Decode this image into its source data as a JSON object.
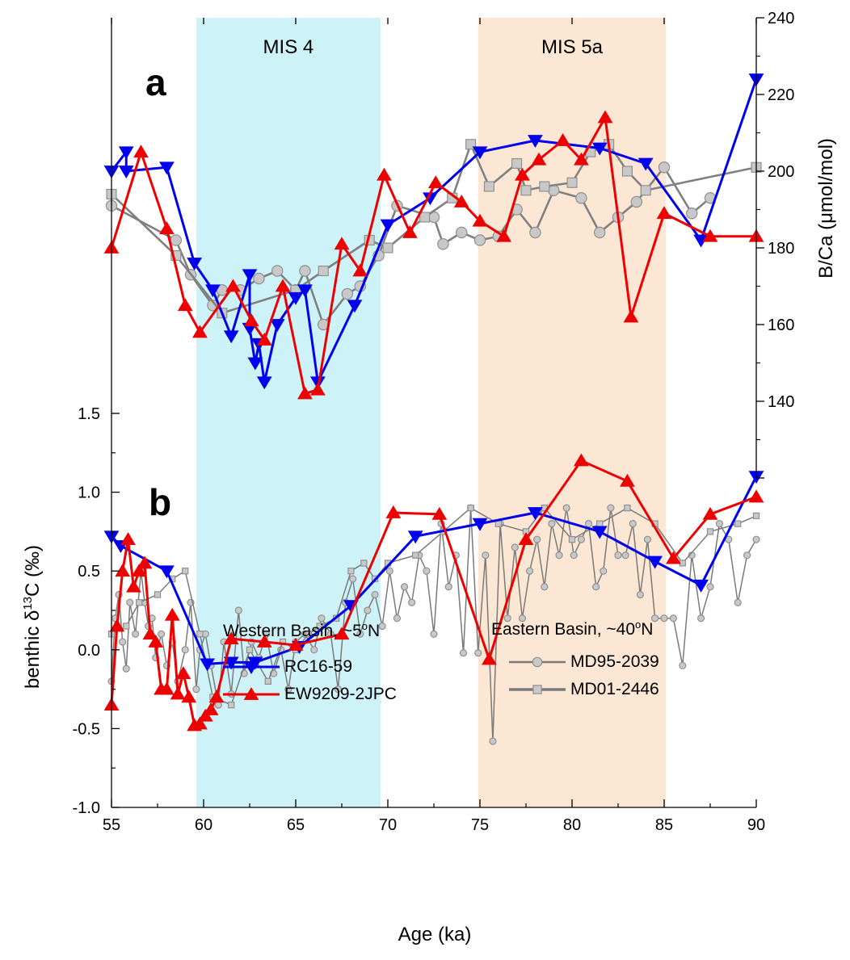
{
  "chart_data": {
    "type": "line",
    "xlabel": "Age (ka)",
    "xlim": [
      55,
      90
    ],
    "xticks": [
      "55",
      "60",
      "65",
      "70",
      "75",
      "80",
      "85",
      "90"
    ],
    "bands": [
      {
        "label": "MIS 4",
        "x0": 59.6,
        "x1": 69.6,
        "color": "#cdf3f8"
      },
      {
        "label": "MIS 5a",
        "x0": 74.9,
        "x1": 85.1,
        "color": "#fce6d4"
      }
    ],
    "legend": {
      "western_title": "Western Basin, ~5",
      "western_unit": "N",
      "eastern_title": "Eastern Basin, ~40",
      "eastern_unit": "N",
      "degree_symbol": "o"
    },
    "panels": [
      {
        "label": "a",
        "ylabel": "B/Ca (μmol/mol)",
        "y_side": "right",
        "ylim": [
          140,
          240
        ],
        "yticks": [
          "140",
          "160",
          "180",
          "200",
          "220",
          "240"
        ],
        "series": [
          {
            "name": "MD95-2039",
            "color": "#808080",
            "marker": "circle",
            "thin": false,
            "x": [
              55,
              58.5,
              59.3,
              60.5,
              61,
              62,
              63,
              64,
              65,
              65.5,
              66.5,
              67.8,
              68.5,
              69.5,
              70.5,
              72.5,
              73,
              74,
              75,
              76,
              77,
              78,
              79,
              80.5,
              81.5,
              82.5,
              83.5,
              85,
              86.5,
              87.5
            ],
            "y": [
              191,
              182,
              173,
              165,
              169,
              169,
              172,
              174,
              169,
              174,
              160,
              168,
              170,
              178,
              191,
              188,
              181,
              184,
              182,
              183,
              190,
              184,
              195,
              193,
              184,
              188,
              192,
              201,
              189,
              193
            ]
          },
          {
            "name": "MD01-2446",
            "color": "#808080",
            "marker": "square",
            "thin": false,
            "x": [
              55,
              58.5,
              61,
              65,
              66.5,
              69,
              70,
              72,
              73.5,
              74.5,
              75.5,
              77,
              77.5,
              78.5,
              80,
              81,
              82,
              83,
              84,
              90
            ],
            "y": [
              194,
              178,
              163,
              169,
              174,
              182,
              180,
              188,
              193,
              207,
              196,
              202,
              195,
              196,
              197,
              205,
              207,
              200,
              195,
              201
            ]
          },
          {
            "name": "RC16-59",
            "color": "#0000ee",
            "marker": "tri-down",
            "thin": false,
            "x": [
              55,
              55.8,
              55.8,
              58,
              59.5,
              60.5,
              61.5,
              62.5,
              62.5,
              62.8,
              63,
              63.3,
              64,
              65,
              65.5,
              66.2,
              68.2,
              70,
              72.3,
              75,
              78,
              81.5,
              84,
              87,
              90
            ],
            "y": [
              200,
              205,
              200,
              201,
              176,
              169,
              157,
              173,
              159,
              150,
              155,
              145,
              160,
              167,
              169,
              145,
              165,
              186,
              193,
              205,
              208,
              206,
              202,
              182,
              224
            ]
          },
          {
            "name": "EW9209-2JPC",
            "color": "#ee0000",
            "marker": "tri-up",
            "thin": false,
            "x": [
              55,
              56.6,
              58,
              59,
              59.8,
              61.6,
              62.6,
              63.3,
              64.3,
              65.5,
              66.2,
              67.5,
              68.5,
              69.8,
              71.2,
              72.6,
              74,
              75,
              76.3,
              77.3,
              78.2,
              79.5,
              80.5,
              81.8,
              83.2,
              85,
              87.5,
              90
            ],
            "y": [
              180,
              205,
              185,
              165,
              158,
              170,
              161,
              156,
              170,
              142,
              143,
              181,
              174,
              199,
              184,
              197,
              192,
              187,
              183,
              199,
              203,
              208,
              203,
              214,
              162,
              189,
              183,
              183
            ]
          }
        ]
      },
      {
        "label": "b",
        "ylabel": "benthic δ",
        "ylabel_sup": "13",
        "ylabel_tail": "C (‰)",
        "y_side": "left",
        "ylim": [
          -1.0,
          1.5
        ],
        "yticks": [
          "-1.0",
          "-0.5",
          "0.0",
          "0.5",
          "1.0",
          "1.5"
        ],
        "series": [
          {
            "name": "MD95-2039",
            "color": "#7a7a7a",
            "marker": "circle",
            "thin": true,
            "x": [
              55,
              55.2,
              55.4,
              55.6,
              55.8,
              56,
              56.3,
              56.6,
              56.8,
              57,
              57.2,
              57.4,
              57.7,
              58,
              58.3,
              58.6,
              59,
              59.3,
              59.6,
              59.8,
              60.1,
              60.4,
              60.8,
              61.1,
              61.5,
              61.9,
              62.2,
              62.6,
              63,
              63.4,
              63.8,
              64.2,
              64.6,
              65,
              65.5,
              66,
              66.4,
              66.9,
              67.3,
              67.7,
              68.1,
              68.5,
              68.9,
              69.3,
              69.7,
              70.1,
              70.5,
              70.9,
              71.3,
              71.7,
              72.1,
              72.5,
              72.9,
              73.3,
              73.7,
              74.1,
              74.5,
              74.9,
              75.3,
              75.7,
              76.1,
              76.5,
              76.9,
              77.3,
              77.7,
              78.1,
              78.5,
              78.9,
              79.3,
              79.7,
              80.1,
              80.5,
              80.9,
              81.3,
              81.7,
              82.1,
              82.5,
              82.9,
              83.3,
              83.7,
              84.1,
              84.5,
              85,
              85.5,
              86,
              86.5,
              87,
              87.5,
              88,
              88.5,
              89,
              89.5,
              90
            ],
            "y": [
              -0.2,
              0.2,
              0.35,
              0.05,
              -0.12,
              0.3,
              0.1,
              0.5,
              0.3,
              0.15,
              0.2,
              -0.05,
              0.1,
              -0.1,
              0.05,
              -0.2,
              0.0,
              0.3,
              -0.25,
              0.0,
              0.1,
              -0.1,
              -0.35,
              0.05,
              -0.28,
              0.25,
              -0.15,
              0.05,
              -0.05,
              0.1,
              -0.15,
              0.0,
              -0.25,
              0.05,
              0.1,
              0.0,
              0.2,
              0.1,
              -0.25,
              0.3,
              0.45,
              0.1,
              0.25,
              0.35,
              0.15,
              0.5,
              0.2,
              0.4,
              0.3,
              0.6,
              0.5,
              0.1,
              0.8,
              0.4,
              0.6,
              -0.02,
              0.9,
              -0.02,
              0.6,
              -0.58,
              0.8,
              0.2,
              0.65,
              0.2,
              0.5,
              0.7,
              0.4,
              0.8,
              0.6,
              0.9,
              0.6,
              0.7,
              0.8,
              0.4,
              0.5,
              0.9,
              0.6,
              0.6,
              0.8,
              0.35,
              0.7,
              0.2,
              0.2,
              0.2,
              -0.1,
              0.6,
              0.2,
              0.4,
              0.8,
              0.7,
              0.3,
              0.6,
              0.7
            ]
          },
          {
            "name": "MD01-2446",
            "color": "#7a7a7a",
            "marker": "square",
            "thin": true,
            "x": [
              55,
              55.8,
              56.5,
              57.5,
              58.3,
              59,
              59.8,
              60.5,
              61.5,
              62.5,
              63.5,
              64.3,
              65,
              65.7,
              66.3,
              67.2,
              68,
              68.7,
              69.3,
              70,
              71.5,
              73,
              74.5,
              76,
              77.5,
              78.5,
              80,
              81.5,
              83,
              84.5,
              86,
              87.5,
              89,
              90
            ],
            "y": [
              0.1,
              0.15,
              0.3,
              0.35,
              0.45,
              0.5,
              0.1,
              -0.3,
              -0.35,
              0.0,
              -0.2,
              0.05,
              0.0,
              0.1,
              0.15,
              0.2,
              0.5,
              0.55,
              0.45,
              0.55,
              0.6,
              0.75,
              0.9,
              0.8,
              0.75,
              0.9,
              0.7,
              0.8,
              0.9,
              0.8,
              0.55,
              0.75,
              0.8,
              0.85
            ]
          },
          {
            "name": "RC16-59",
            "color": "#0000ee",
            "marker": "tri-down",
            "thin": false,
            "x": [
              55,
              55.5,
              58,
              60.2,
              61.5,
              62.8,
              65.2,
              68,
              71.5,
              75,
              78,
              81.5,
              84.5,
              87,
              90
            ],
            "y": [
              0.72,
              0.66,
              0.5,
              -0.09,
              -0.08,
              -0.08,
              0.02,
              0.28,
              0.72,
              0.8,
              0.87,
              0.75,
              0.56,
              0.41,
              1.1
            ]
          },
          {
            "name": "EW9209-2JPC",
            "color": "#ee0000",
            "marker": "tri-up",
            "thin": false,
            "x": [
              55,
              55.3,
              55.6,
              55.9,
              56.2,
              56.5,
              56.8,
              57.1,
              57.4,
              57.7,
              58,
              58.3,
              58.6,
              58.9,
              59.2,
              59.5,
              59.8,
              60.1,
              60.4,
              60.7,
              61.5,
              63.3,
              65,
              67.5,
              70.3,
              72.8,
              75.5,
              77.5,
              80.5,
              83,
              85.5,
              87.5,
              90
            ],
            "y": [
              -0.35,
              0.15,
              0.5,
              0.7,
              0.4,
              0.5,
              0.55,
              0.1,
              0.05,
              -0.25,
              -0.25,
              0.22,
              -0.28,
              -0.15,
              -0.3,
              -0.48,
              -0.47,
              -0.42,
              -0.38,
              -0.3,
              0.07,
              0.05,
              0.03,
              0.1,
              0.87,
              0.86,
              -0.06,
              0.7,
              1.2,
              1.07,
              0.58,
              0.86,
              0.97
            ]
          }
        ]
      }
    ]
  }
}
